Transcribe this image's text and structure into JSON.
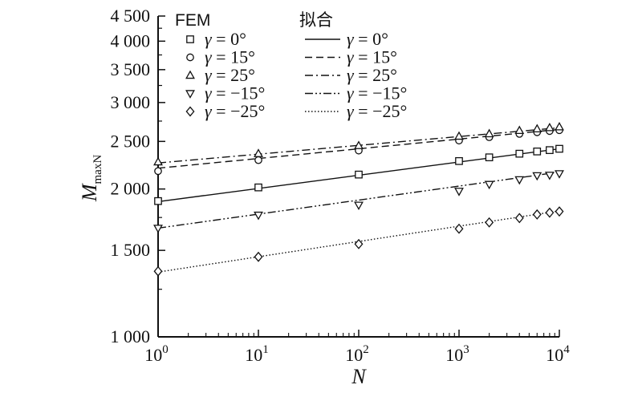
{
  "chart_data": {
    "type": "scatter",
    "title": "",
    "xlabel": "N",
    "ylabel": {
      "main": "M",
      "sub": "maxN"
    },
    "x_scale": "log",
    "y_scale": "log",
    "xlim": [
      1,
      10000
    ],
    "ylim": [
      1000,
      4500
    ],
    "grid": false,
    "x_ticks": [
      {
        "value": 1,
        "base": "10",
        "exp": "0"
      },
      {
        "value": 10,
        "base": "10",
        "exp": "1"
      },
      {
        "value": 100,
        "base": "10",
        "exp": "2"
      },
      {
        "value": 1000,
        "base": "10",
        "exp": "3"
      },
      {
        "value": 10000,
        "base": "10",
        "exp": "4"
      }
    ],
    "y_ticks": [
      {
        "value": 1000,
        "label": "1 000"
      },
      {
        "value": 1500,
        "label": "1 500"
      },
      {
        "value": 2000,
        "label": "2 000"
      },
      {
        "value": 2500,
        "label": "2 500"
      },
      {
        "value": 3000,
        "label": "3 000"
      },
      {
        "value": 3500,
        "label": "3 500"
      },
      {
        "value": 4000,
        "label": "4 000"
      },
      {
        "value": 4500,
        "label": "4 500"
      }
    ],
    "legend": {
      "placement": "top-left",
      "fem_header": "FEM",
      "fit_header": "拟合",
      "entries": [
        {
          "gamma_symbol": "γ",
          "text": " = 0°",
          "marker": "square",
          "dash": "solid"
        },
        {
          "gamma_symbol": "γ",
          "text": " = 15°",
          "marker": "circle",
          "dash": "dashed"
        },
        {
          "gamma_symbol": "γ",
          "text": " = 25°",
          "marker": "triangle-up",
          "dash": "dashdot"
        },
        {
          "gamma_symbol": "γ",
          "text": " = −15°",
          "marker": "triangle-down",
          "dash": "dashdotdot"
        },
        {
          "gamma_symbol": "γ",
          "text": " = −25°",
          "marker": "diamond",
          "dash": "dotted"
        }
      ]
    },
    "series": [
      {
        "marker": "square",
        "dash": "solid",
        "x": [
          1,
          10,
          100,
          1000,
          2000,
          4000,
          6000,
          8000,
          10000
        ],
        "y": [
          1890,
          2015,
          2140,
          2280,
          2320,
          2360,
          2385,
          2400,
          2415
        ],
        "fit": {
          "x": [
            1,
            10000
          ],
          "y": [
            1885,
            2415
          ]
        }
      },
      {
        "marker": "circle",
        "dash": "dashed",
        "x": [
          1,
          10,
          100,
          1000,
          2000,
          4000,
          6000,
          8000,
          10000
        ],
        "y": [
          2175,
          2290,
          2395,
          2510,
          2550,
          2590,
          2610,
          2625,
          2635
        ],
        "fit": {
          "x": [
            1,
            10000
          ],
          "y": [
            2205,
            2645
          ]
        }
      },
      {
        "marker": "triangle-up",
        "dash": "dashdot",
        "x": [
          1,
          10,
          100,
          1000,
          2000,
          4000,
          6000,
          8000,
          10000
        ],
        "y": [
          2270,
          2360,
          2450,
          2560,
          2590,
          2630,
          2650,
          2665,
          2675
        ],
        "fit": {
          "x": [
            1,
            10000
          ],
          "y": [
            2260,
            2665
          ]
        }
      },
      {
        "marker": "triangle-down",
        "dash": "dashdotdot",
        "x": [
          1,
          10,
          100,
          1000,
          2000,
          4000,
          6000,
          8000,
          10000
        ],
        "y": [
          1665,
          1770,
          1855,
          1980,
          2045,
          2090,
          2130,
          2135,
          2150
        ],
        "fit": {
          "x": [
            1,
            10000
          ],
          "y": [
            1665,
            2165
          ]
        }
      },
      {
        "marker": "diamond",
        "dash": "dotted",
        "x": [
          1,
          10,
          100,
          1000,
          2000,
          4000,
          6000,
          8000,
          10000
        ],
        "y": [
          1360,
          1455,
          1545,
          1660,
          1710,
          1745,
          1775,
          1790,
          1800
        ],
        "fit": {
          "x": [
            1,
            10000
          ],
          "y": [
            1355,
            1805
          ]
        }
      }
    ]
  }
}
